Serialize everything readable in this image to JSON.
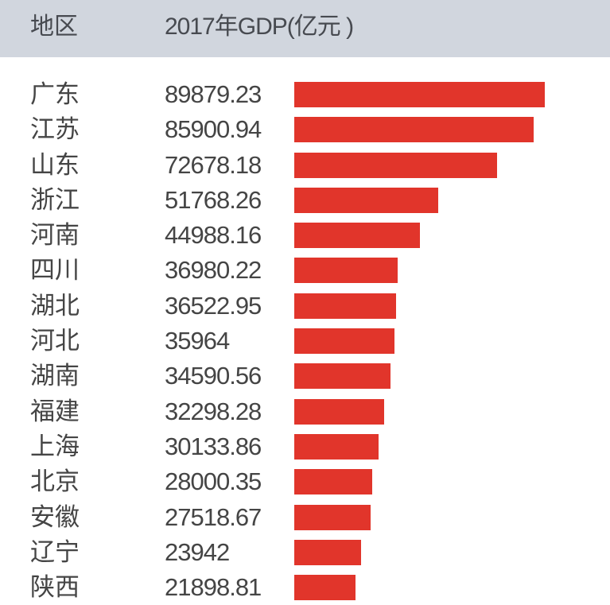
{
  "header": {
    "region_label": "地区",
    "gdp_label": "2017年GDP(亿元 )"
  },
  "colors": {
    "bar": "#e1352b",
    "header_bg": "#d1d6de",
    "text": "#454545"
  },
  "rows": [
    {
      "region": "广东",
      "value": "89879.23"
    },
    {
      "region": "江苏",
      "value": "85900.94"
    },
    {
      "region": "山东",
      "value": "72678.18"
    },
    {
      "region": "浙江",
      "value": "51768.26"
    },
    {
      "region": "河南",
      "value": "44988.16"
    },
    {
      "region": "四川",
      "value": "36980.22"
    },
    {
      "region": "湖北",
      "value": "36522.95"
    },
    {
      "region": "河北",
      "value": "35964"
    },
    {
      "region": "湖南",
      "value": "34590.56"
    },
    {
      "region": "福建",
      "value": "32298.28"
    },
    {
      "region": "上海",
      "value": "30133.86"
    },
    {
      "region": "北京",
      "value": "28000.35"
    },
    {
      "region": "安徽",
      "value": "27518.67"
    },
    {
      "region": "辽宁",
      "value": "23942"
    },
    {
      "region": "陕西",
      "value": "21898.81"
    }
  ],
  "chart_data": {
    "type": "bar",
    "orientation": "horizontal",
    "title": "",
    "xlabel": "2017年GDP(亿元 )",
    "ylabel": "地区",
    "categories": [
      "广东",
      "江苏",
      "山东",
      "浙江",
      "河南",
      "四川",
      "湖北",
      "河北",
      "湖南",
      "福建",
      "上海",
      "北京",
      "安徽",
      "辽宁",
      "陕西"
    ],
    "values": [
      89879.23,
      85900.94,
      72678.18,
      51768.26,
      44988.16,
      36980.22,
      36522.95,
      35964,
      34590.56,
      32298.28,
      30133.86,
      28000.35,
      27518.67,
      23942,
      21898.81
    ],
    "grid": false,
    "legend": "none",
    "data_labels": true
  }
}
